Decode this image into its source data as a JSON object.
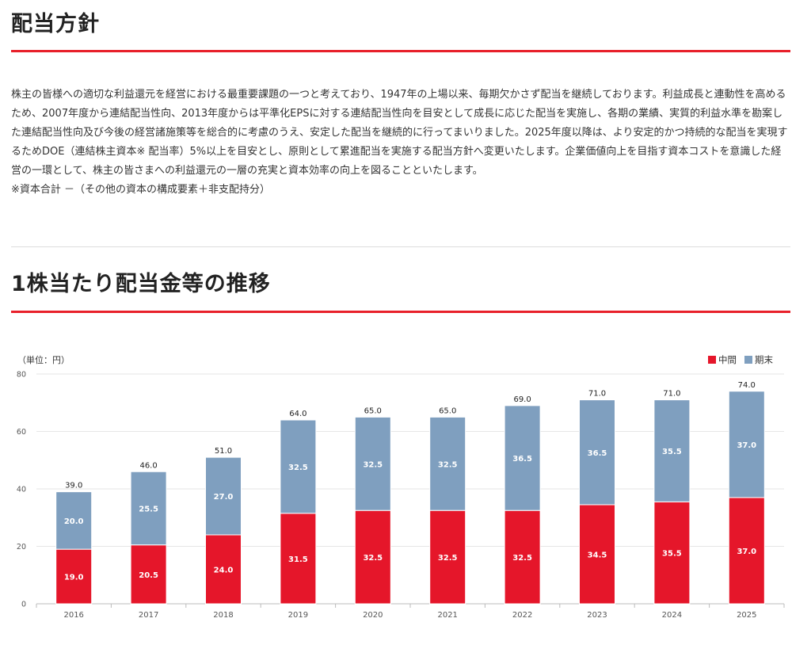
{
  "section1": {
    "title": "配当方針",
    "paragraph": "株主の皆様への適切な利益還元を経営における最重要課題の一つと考えており、1947年の上場以来、毎期欠かさず配当を継続しております。利益成長と連動性を高めるため、2007年度から連結配当性向、2013年度からは平準化EPSに対する連結配当性向を目安として成長に応じた配当を実施し、各期の業績、実質的利益水準を勘案した連結配当性向及び今後の経営諸施策等を総合的に考慮のうえ、安定した配当を継続的に行ってまいりました。2025年度以降は、より安定的かつ持続的な配当を実現するためDOE（連結株主資本※ 配当率）5%以上を目安とし、原則として累進配当を実施する配当方針へ変更いたします。企業価値向上を目指す資本コストを意識した経営の一環として、株主の皆さまへの利益還元の一層の充実と資本効率の向上を図ることといたします。",
    "note": "※資本合計 －（その他の資本の構成要素＋非支配持分）"
  },
  "section2": {
    "title": "1株当たり配当金等の推移"
  },
  "chart_data": {
    "type": "bar",
    "stacked": true,
    "unit_label": "（単位：円）",
    "categories": [
      "2016",
      "2017",
      "2018",
      "2019",
      "2020",
      "2021",
      "2022",
      "2023",
      "2024",
      "2025"
    ],
    "series": [
      {
        "name": "中間",
        "color": "#e5162a",
        "values": [
          19.0,
          20.5,
          24.0,
          31.5,
          32.5,
          32.5,
          32.5,
          34.5,
          35.5,
          37.0
        ]
      },
      {
        "name": "期末",
        "color": "#7f9fbf",
        "values": [
          20.0,
          25.5,
          27.0,
          32.5,
          32.5,
          32.5,
          36.5,
          36.5,
          35.5,
          37.0
        ]
      }
    ],
    "totals": [
      39.0,
      46.0,
      51.0,
      64.0,
      65.0,
      65.0,
      69.0,
      71.0,
      71.0,
      74.0
    ],
    "ylim": [
      0,
      80
    ],
    "yticks": [
      0,
      20,
      40,
      60,
      80
    ],
    "grid": true,
    "legend_position": "top-right"
  }
}
